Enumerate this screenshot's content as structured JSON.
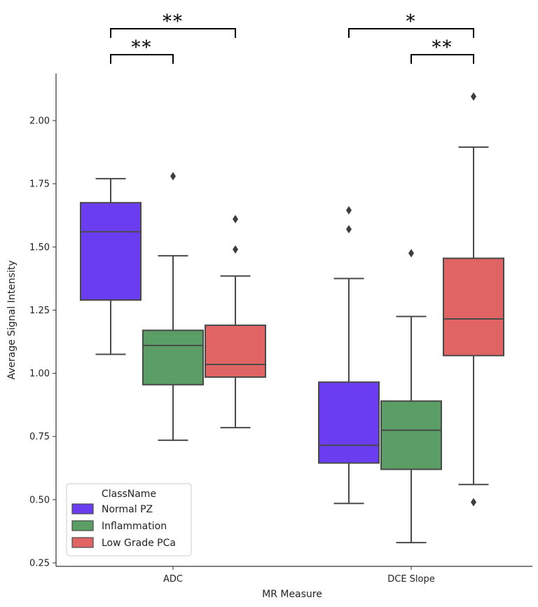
{
  "chart_data": {
    "type": "box",
    "xlabel": "MR Measure",
    "ylabel": "Average Signal Intensity",
    "ylim": [
      0.25,
      2.2
    ],
    "yticks": [
      "0.25",
      "0.50",
      "0.75",
      "1.00",
      "1.25",
      "1.50",
      "1.75",
      "2.00"
    ],
    "ytick_values": [
      0.25,
      0.5,
      0.75,
      1.0,
      1.25,
      1.5,
      1.75,
      2.0
    ],
    "categories": [
      "ADC",
      "DCE Slope"
    ],
    "legend": {
      "title": "ClassName",
      "location": "lower-left"
    },
    "series": [
      {
        "name": "Normal PZ",
        "color": "#6a3ef0",
        "boxes": [
          {
            "category": "ADC",
            "q1": 1.29,
            "median": 1.56,
            "q3": 1.675,
            "whisker_low": 1.075,
            "whisker_high": 1.77,
            "outliers": []
          },
          {
            "category": "DCE Slope",
            "q1": 0.645,
            "median": 0.715,
            "q3": 0.965,
            "whisker_low": 0.485,
            "whisker_high": 1.375,
            "outliers": [
              1.57,
              1.645
            ]
          }
        ]
      },
      {
        "name": "Inflammation",
        "color": "#5a9e66",
        "boxes": [
          {
            "category": "ADC",
            "q1": 0.955,
            "median": 1.11,
            "q3": 1.17,
            "whisker_low": 0.735,
            "whisker_high": 1.465,
            "outliers": [
              1.78
            ]
          },
          {
            "category": "DCE Slope",
            "q1": 0.62,
            "median": 0.775,
            "q3": 0.89,
            "whisker_low": 0.33,
            "whisker_high": 1.225,
            "outliers": [
              1.475
            ]
          }
        ]
      },
      {
        "name": "Low Grade PCa",
        "color": "#e06464",
        "boxes": [
          {
            "category": "ADC",
            "q1": 0.985,
            "median": 1.035,
            "q3": 1.19,
            "whisker_low": 0.785,
            "whisker_high": 1.385,
            "outliers": [
              1.49,
              1.61
            ]
          },
          {
            "category": "DCE Slope",
            "q1": 1.07,
            "median": 1.215,
            "q3": 1.455,
            "whisker_low": 0.56,
            "whisker_high": 1.895,
            "outliers": [
              0.49,
              2.095
            ]
          }
        ]
      }
    ],
    "significance": [
      {
        "category": "ADC",
        "from": "Normal PZ",
        "to": "Low Grade PCa",
        "label": "**",
        "level": 2
      },
      {
        "category": "ADC",
        "from": "Normal PZ",
        "to": "Inflammation",
        "label": "**",
        "level": 1
      },
      {
        "category": "DCE Slope",
        "from": "Normal PZ",
        "to": "Low Grade PCa",
        "label": "*",
        "level": 2
      },
      {
        "category": "DCE Slope",
        "from": "Inflammation",
        "to": "Low Grade PCa",
        "label": "**",
        "level": 1
      }
    ]
  }
}
